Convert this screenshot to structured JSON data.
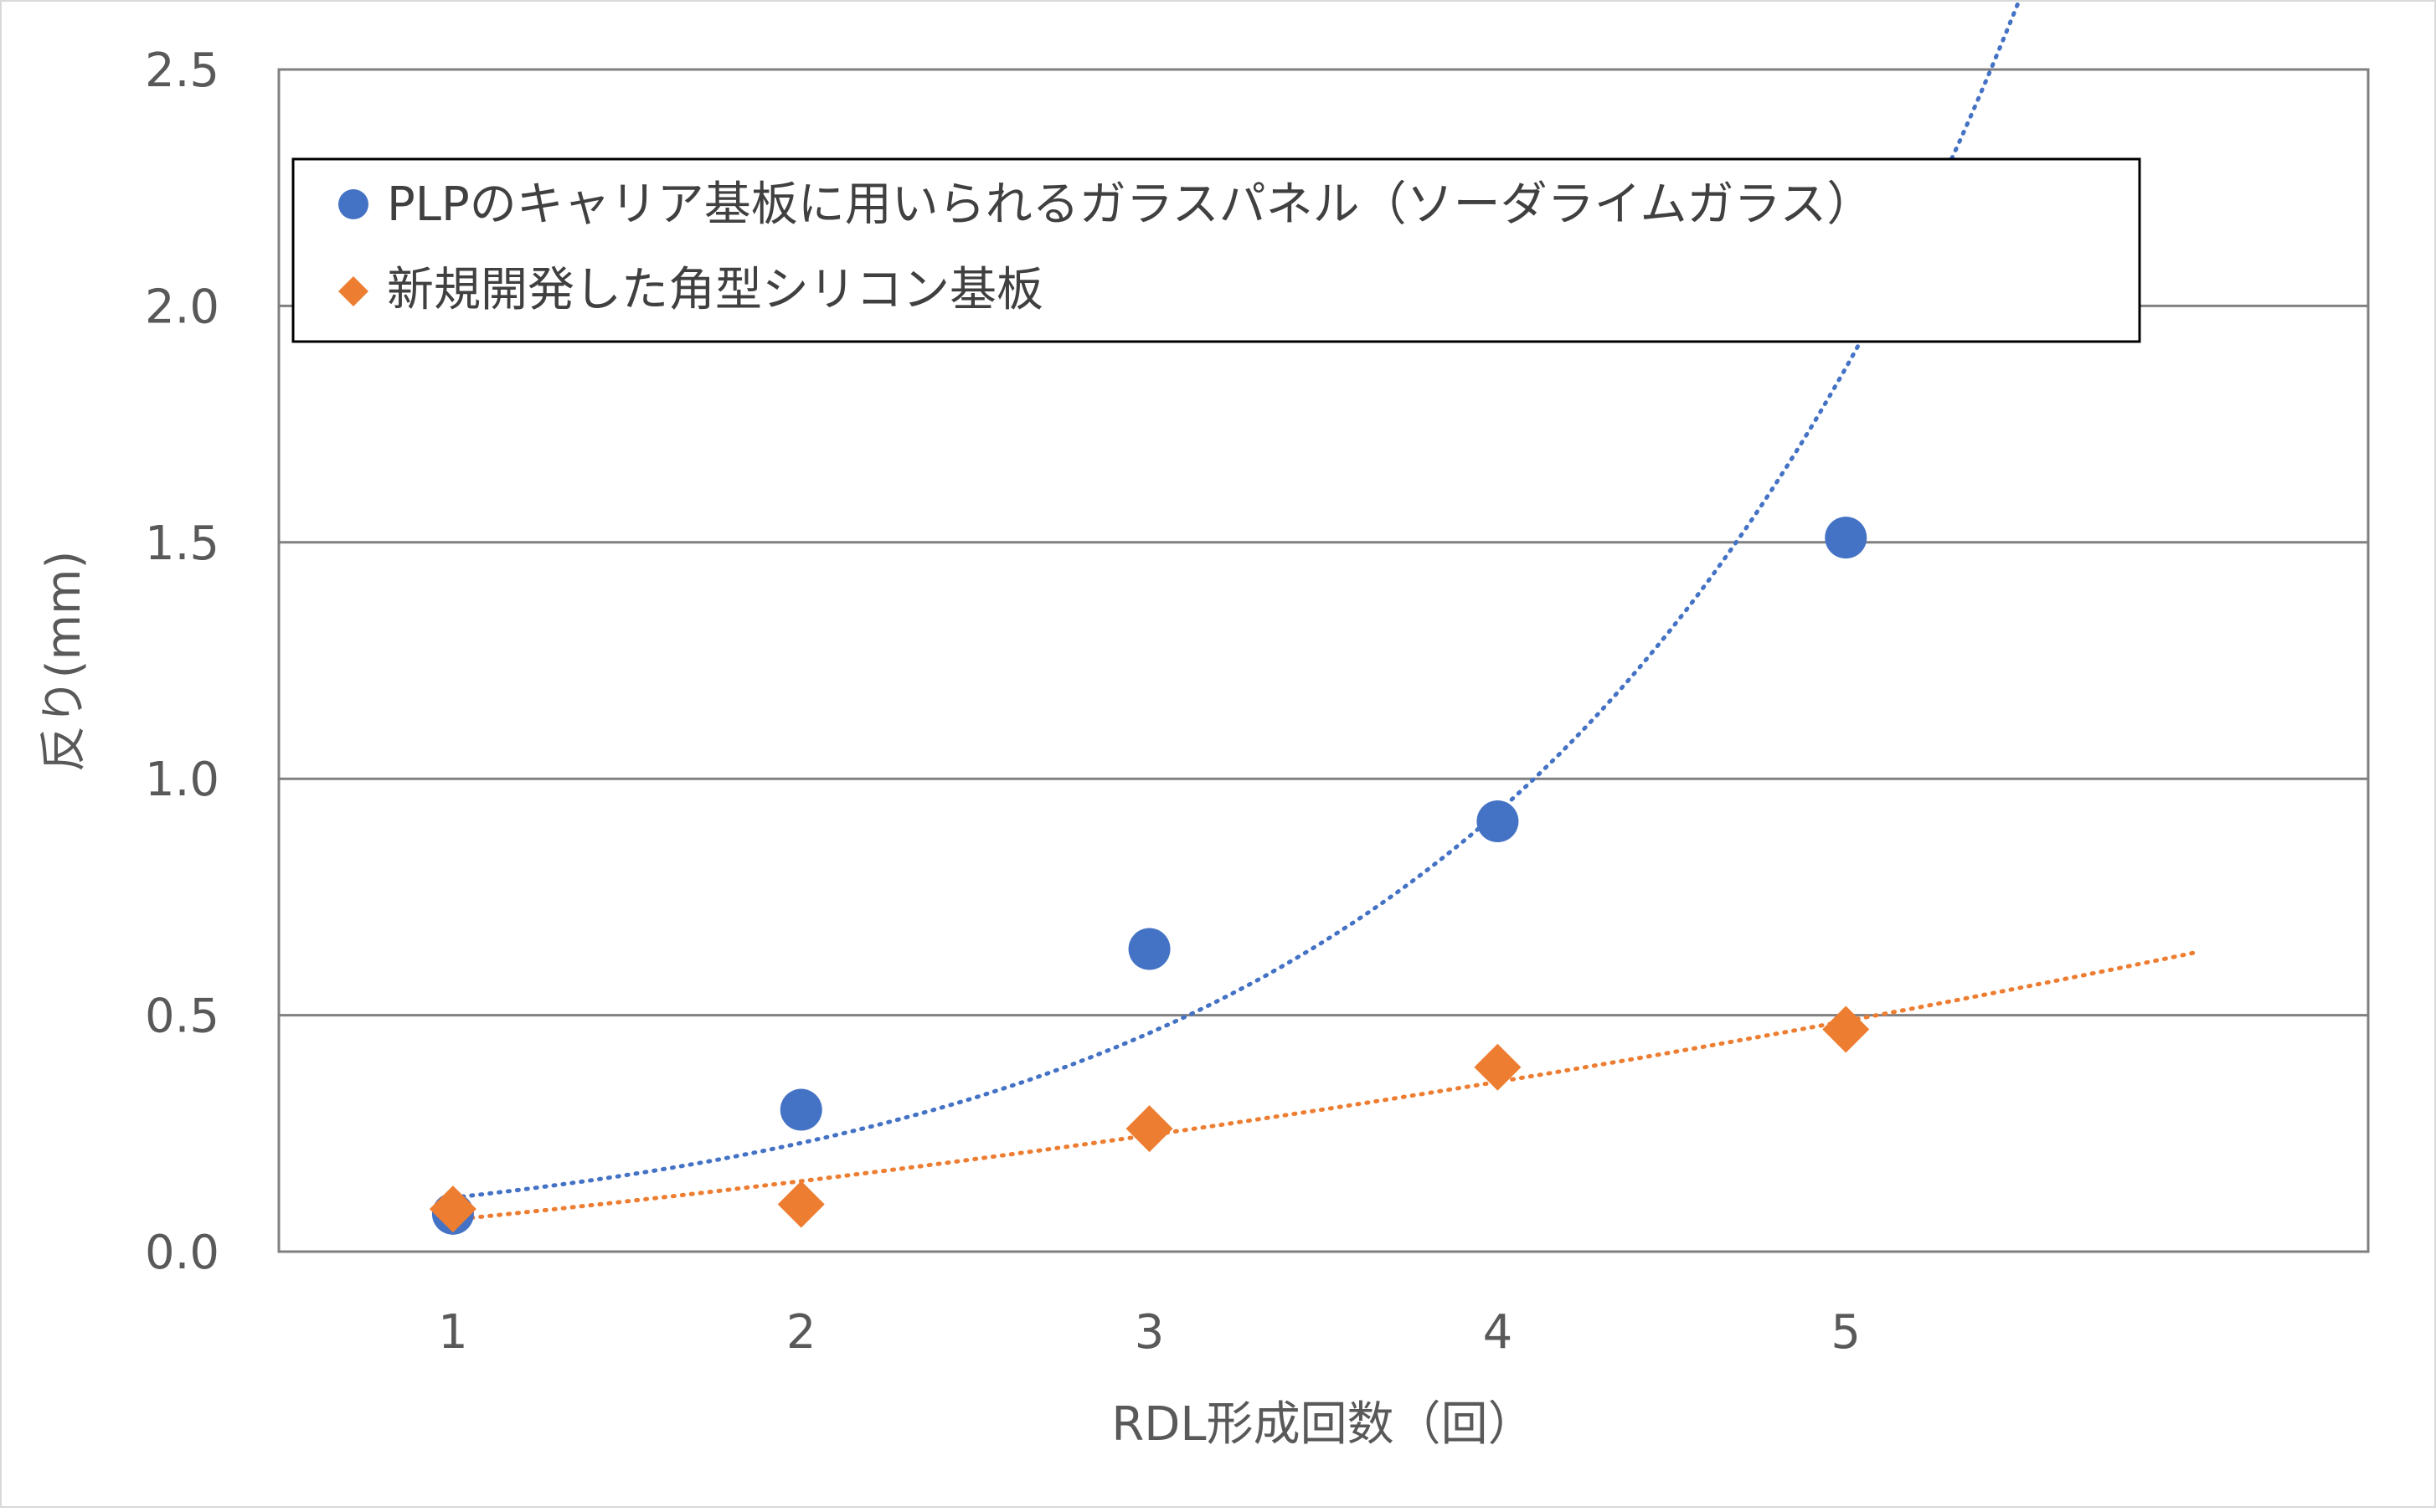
{
  "chart_data": {
    "type": "scatter",
    "title": "",
    "xlabel": "RDL形成回数（回）",
    "ylabel": "反り(mm)",
    "x_ticks": [
      "1",
      "2",
      "3",
      "4",
      "5"
    ],
    "y_ticks": [
      "0.0",
      "0.5",
      "1.0",
      "1.5",
      "2.0",
      "2.5"
    ],
    "xlim": [
      0.5,
      6.5
    ],
    "ylim": [
      0,
      2.5
    ],
    "grid": "horizontal",
    "legend_position": "top-left",
    "series": [
      {
        "name": "PLPのキャリア基板に用いられるガラスパネル（ソーダライムガラス）",
        "marker": "circle",
        "color": "#4472c4",
        "points": [
          {
            "x": 1,
            "y": 0.08
          },
          {
            "x": 2,
            "y": 0.3
          },
          {
            "x": 3,
            "y": 0.64
          },
          {
            "x": 4,
            "y": 0.91
          },
          {
            "x": 5,
            "y": 1.51
          }
        ],
        "trendline": {
          "type": "exponential",
          "style": "dotted",
          "x_range": [
            1,
            6
          ]
        }
      },
      {
        "name": "新規開発した角型シリコン基板",
        "marker": "diamond",
        "color": "#ed7d31",
        "points": [
          {
            "x": 1,
            "y": 0.09
          },
          {
            "x": 2,
            "y": 0.1
          },
          {
            "x": 3,
            "y": 0.26
          },
          {
            "x": 4,
            "y": 0.39
          },
          {
            "x": 5,
            "y": 0.47
          }
        ],
        "trendline": {
          "type": "polynomial",
          "style": "dotted",
          "x_range": [
            1,
            6
          ]
        }
      }
    ]
  }
}
